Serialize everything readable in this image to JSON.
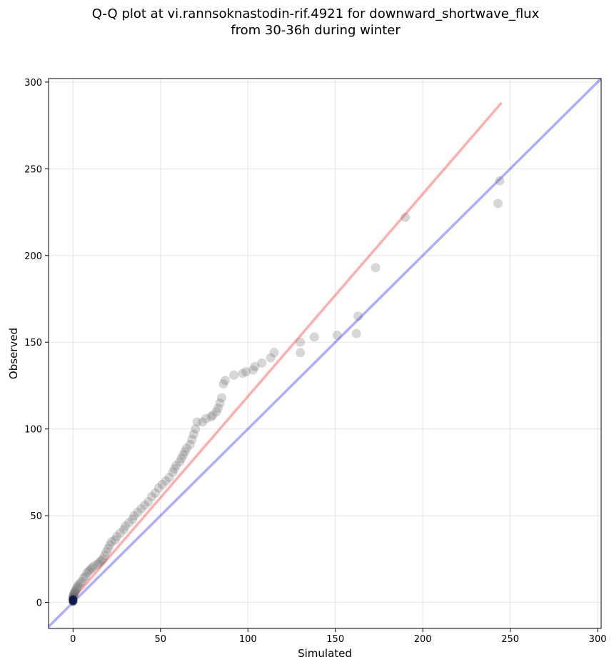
{
  "chart_data": {
    "type": "scatter",
    "title_line1": "Q-Q plot at vi.rannsoknastodin-rif.4921 for downward_shortwave_flux",
    "title_line2": "from 30-36h during winter",
    "xlabel": "Simulated",
    "ylabel": "Observed",
    "xlim": [
      -14,
      302
    ],
    "ylim": [
      -15,
      302
    ],
    "x_ticks": [
      0,
      50,
      100,
      150,
      200,
      250,
      300
    ],
    "y_ticks": [
      0,
      50,
      100,
      150,
      200,
      250,
      300
    ],
    "grid": true,
    "reference_lines": [
      {
        "role": "identity",
        "color": "#0000ff",
        "points": [
          [
            -14,
            -14
          ],
          [
            302,
            302
          ]
        ]
      },
      {
        "role": "fit",
        "color": "#ff0000",
        "points": [
          [
            0,
            2
          ],
          [
            245,
            288
          ]
        ]
      }
    ],
    "points": [
      [
        0,
        0.5
      ],
      [
        0,
        1
      ],
      [
        0,
        1.5
      ],
      [
        0,
        2
      ],
      [
        0,
        2.5
      ],
      [
        0,
        3
      ],
      [
        0.2,
        3.5
      ],
      [
        0.3,
        4
      ],
      [
        0.5,
        5
      ],
      [
        0.8,
        5.5
      ],
      [
        1,
        6
      ],
      [
        1.5,
        7
      ],
      [
        2,
        8
      ],
      [
        2.5,
        9
      ],
      [
        3,
        10
      ],
      [
        4,
        11
      ],
      [
        5,
        12
      ],
      [
        6,
        14
      ],
      [
        7,
        15
      ],
      [
        8,
        17
      ],
      [
        9,
        18
      ],
      [
        10,
        19
      ],
      [
        11,
        20
      ],
      [
        12,
        21
      ],
      [
        14,
        22
      ],
      [
        15,
        23
      ],
      [
        16,
        24
      ],
      [
        17,
        25
      ],
      [
        18,
        27
      ],
      [
        19,
        29
      ],
      [
        20,
        31
      ],
      [
        21,
        33
      ],
      [
        22,
        35
      ],
      [
        24,
        36
      ],
      [
        25,
        38
      ],
      [
        27,
        40
      ],
      [
        29,
        42
      ],
      [
        30,
        44
      ],
      [
        32,
        46
      ],
      [
        34,
        48
      ],
      [
        35,
        50
      ],
      [
        37,
        52
      ],
      [
        39,
        54
      ],
      [
        41,
        56
      ],
      [
        43,
        58
      ],
      [
        45,
        61
      ],
      [
        47,
        63
      ],
      [
        49,
        66
      ],
      [
        51,
        68
      ],
      [
        53,
        70
      ],
      [
        55,
        72
      ],
      [
        57,
        75
      ],
      [
        58,
        77
      ],
      [
        59,
        79
      ],
      [
        61,
        81
      ],
      [
        62,
        83
      ],
      [
        63,
        85
      ],
      [
        64,
        87
      ],
      [
        65,
        89
      ],
      [
        67,
        91
      ],
      [
        68,
        94
      ],
      [
        69,
        97
      ],
      [
        70,
        100
      ],
      [
        71,
        104
      ],
      [
        74,
        104
      ],
      [
        76,
        106
      ],
      [
        79,
        107
      ],
      [
        80,
        108
      ],
      [
        82,
        110
      ],
      [
        83,
        112
      ],
      [
        84,
        115
      ],
      [
        85,
        118
      ],
      [
        86,
        126
      ],
      [
        87,
        128
      ],
      [
        92,
        131
      ],
      [
        97,
        132
      ],
      [
        99,
        133
      ],
      [
        103,
        134
      ],
      [
        104,
        136
      ],
      [
        108,
        138
      ],
      [
        113,
        141
      ],
      [
        115,
        144
      ],
      [
        130,
        144
      ],
      [
        130,
        150
      ],
      [
        138,
        153
      ],
      [
        151,
        154
      ],
      [
        162,
        155
      ],
      [
        163,
        165
      ],
      [
        173,
        193
      ],
      [
        190,
        222
      ],
      [
        243,
        230
      ],
      [
        244,
        243
      ]
    ]
  }
}
